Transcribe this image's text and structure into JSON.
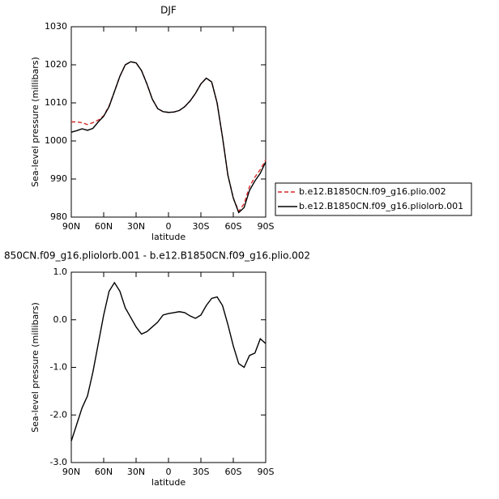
{
  "chart_data": [
    {
      "type": "line",
      "title": "DJF",
      "xlabel": "latitude",
      "ylabel": "Sea-level pressure (millibars)",
      "x": [
        90,
        85,
        80,
        75,
        70,
        65,
        60,
        55,
        50,
        45,
        40,
        35,
        30,
        25,
        20,
        15,
        10,
        5,
        0,
        -5,
        -10,
        -15,
        -20,
        -25,
        -30,
        -35,
        -40,
        -45,
        -50,
        -55,
        -60,
        -65,
        -70,
        -75,
        -80,
        -85,
        -90
      ],
      "xlim": [
        90,
        -90
      ],
      "xticks": [
        {
          "value": 90,
          "label": "90N"
        },
        {
          "value": 60,
          "label": "60N"
        },
        {
          "value": 30,
          "label": "30N"
        },
        0,
        {
          "value": -30,
          "label": "30S"
        },
        {
          "value": -60,
          "label": "60S"
        },
        {
          "value": -90,
          "label": "90S"
        }
      ],
      "ylim": [
        980,
        1030
      ],
      "yticks": [
        980,
        990,
        1000,
        1010,
        1020,
        1030
      ],
      "legend": "right",
      "series": [
        {
          "name": "b.e12.B1850CN.f09_g16.plio.002",
          "color": "#d62728",
          "dashed": true,
          "values": [
            1005,
            1005,
            1004.8,
            1004.3,
            1004.8,
            1005.5,
            1006.6,
            1009.2,
            1013,
            1017,
            1020,
            1020.8,
            1020.5,
            1018.5,
            1015,
            1011,
            1008.5,
            1007.7,
            1007.5,
            1007.6,
            1008,
            1009,
            1010.5,
            1012.5,
            1015,
            1016.5,
            1015.5,
            1010,
            1001,
            991,
            985,
            981.5,
            983.5,
            988,
            990.5,
            992.5,
            995
          ]
        },
        {
          "name": "b.e12.B1850CN.f09_g16.pliolorb.001",
          "color": "#000000",
          "dashed": false,
          "values": [
            1002.3,
            1002.7,
            1003.2,
            1002.8,
            1003.3,
            1005,
            1006.5,
            1009,
            1013,
            1017,
            1020,
            1020.8,
            1020.5,
            1018.5,
            1015,
            1011,
            1008.5,
            1007.7,
            1007.5,
            1007.6,
            1008,
            1009,
            1010.5,
            1012.5,
            1015,
            1016.5,
            1015.5,
            1010,
            1001,
            991,
            985,
            981.2,
            982.5,
            987,
            989.5,
            991.5,
            994.5
          ]
        }
      ]
    },
    {
      "type": "line",
      "title": "850CN.f09_g16.pliolorb.001 - b.e12.B1850CN.f09_g16.plio.002",
      "xlabel": "latitude",
      "ylabel": "Sea-level pressure (millibars)",
      "x": [
        90,
        85,
        80,
        75,
        70,
        65,
        60,
        55,
        50,
        45,
        40,
        35,
        30,
        25,
        20,
        15,
        10,
        5,
        0,
        -5,
        -10,
        -15,
        -20,
        -25,
        -30,
        -35,
        -40,
        -45,
        -50,
        -55,
        -60,
        -65,
        -70,
        -75,
        -80,
        -85,
        -90
      ],
      "xlim": [
        90,
        -90
      ],
      "xticks": [
        {
          "value": 90,
          "label": "90N"
        },
        {
          "value": 60,
          "label": "60N"
        },
        {
          "value": 30,
          "label": "30N"
        },
        0,
        {
          "value": -30,
          "label": "30S"
        },
        {
          "value": -60,
          "label": "60S"
        },
        {
          "value": -90,
          "label": "90S"
        }
      ],
      "ylim": [
        -3,
        1
      ],
      "yticks": [
        {
          "value": 1,
          "label": "1.0"
        },
        {
          "value": 0,
          "label": "0.0"
        },
        {
          "value": -1,
          "label": "-1.0"
        },
        {
          "value": -2,
          "label": "-2.0"
        },
        {
          "value": -3,
          "label": "-3.0"
        }
      ],
      "series": [
        {
          "color": "#000000",
          "dashed": false,
          "values": [
            -2.55,
            -2.2,
            -1.85,
            -1.6,
            -1.1,
            -0.5,
            0.1,
            0.6,
            0.78,
            0.6,
            0.25,
            0.05,
            -0.15,
            -0.3,
            -0.25,
            -0.15,
            -0.05,
            0.1,
            0.13,
            0.15,
            0.17,
            0.15,
            0.08,
            0.03,
            0.1,
            0.3,
            0.45,
            0.48,
            0.3,
            -0.1,
            -0.55,
            -0.92,
            -1.0,
            -0.75,
            -0.7,
            -0.4,
            -0.5
          ]
        }
      ]
    }
  ]
}
